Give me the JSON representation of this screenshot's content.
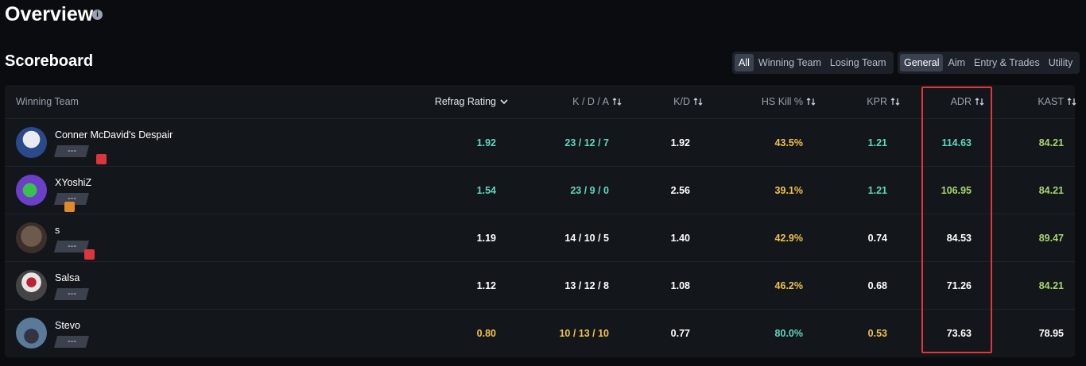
{
  "header": {
    "title": "Overview"
  },
  "section": {
    "title": "Scoreboard"
  },
  "team_filter": [
    "All",
    "Winning Team",
    "Losing Team"
  ],
  "stat_filter": [
    "General",
    "Aim",
    "Entry & Trades",
    "Utility"
  ],
  "table": {
    "columns": [
      "Winning Team",
      "Refrag Rating",
      "K / D / A",
      "K/D",
      "HS Kill %",
      "KPR",
      "ADR",
      "KAST"
    ],
    "rows": [
      {
        "name": "Conner McDavid's Despair",
        "rank": "---",
        "cells": [
          "1.92",
          "23 / 12 / 7",
          "1.92",
          "43.5%",
          "1.21",
          "114.63",
          "84.21"
        ]
      },
      {
        "name": "XYoshiZ",
        "rank": "---",
        "cells": [
          "1.54",
          "23 / 9 / 0",
          "2.56",
          "39.1%",
          "1.21",
          "106.95",
          "84.21"
        ]
      },
      {
        "name": "s",
        "rank": "---",
        "cells": [
          "1.19",
          "14 / 10 / 5",
          "1.40",
          "42.9%",
          "0.74",
          "84.53",
          "89.47"
        ]
      },
      {
        "name": "Salsa",
        "rank": "---",
        "cells": [
          "1.12",
          "13 / 12 / 8",
          "1.08",
          "46.2%",
          "0.68",
          "71.26",
          "84.21"
        ]
      },
      {
        "name": "Stevo",
        "rank": "---",
        "cells": [
          "0.80",
          "10 / 13 / 10",
          "0.77",
          "80.0%",
          "0.53",
          "73.63",
          "78.95"
        ]
      }
    ]
  }
}
